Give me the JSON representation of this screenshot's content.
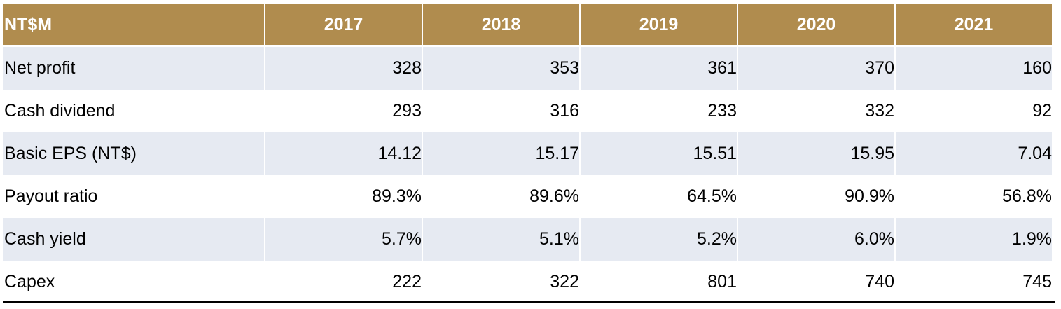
{
  "table": {
    "header": {
      "label": "NT$M",
      "years": [
        "2017",
        "2018",
        "2019",
        "2020",
        "2021"
      ]
    },
    "rows": [
      {
        "label": "Net profit",
        "values": [
          "328",
          "353",
          "361",
          "370",
          "160"
        ]
      },
      {
        "label": "Cash dividend",
        "values": [
          "293",
          "316",
          "233",
          "332",
          "92"
        ]
      },
      {
        "label": "Basic EPS (NT$)",
        "values": [
          "14.12",
          "15.17",
          "15.51",
          "15.95",
          "7.04"
        ]
      },
      {
        "label": "Payout ratio",
        "values": [
          "89.3%",
          "89.6%",
          "64.5%",
          "90.9%",
          "56.8%"
        ]
      },
      {
        "label": "Cash yield",
        "values": [
          "5.7%",
          "5.1%",
          "5.2%",
          "6.0%",
          "1.9%"
        ]
      },
      {
        "label": "Capex",
        "values": [
          "222",
          "322",
          "801",
          "740",
          "745"
        ]
      }
    ]
  },
  "colors": {
    "header_bg": "#b08c4e",
    "header_text": "#ffffff",
    "row_shade": "#e6eaf2",
    "bottom_rule": "#000000"
  }
}
